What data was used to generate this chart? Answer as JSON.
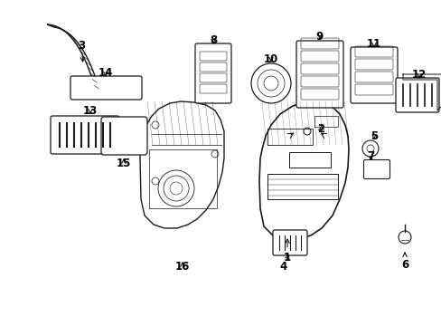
{
  "background_color": "#ffffff",
  "line_color": "#1a1a1a",
  "label_color": "#000000",
  "label_fontsize": 8.5,
  "label_fontweight": "bold"
}
